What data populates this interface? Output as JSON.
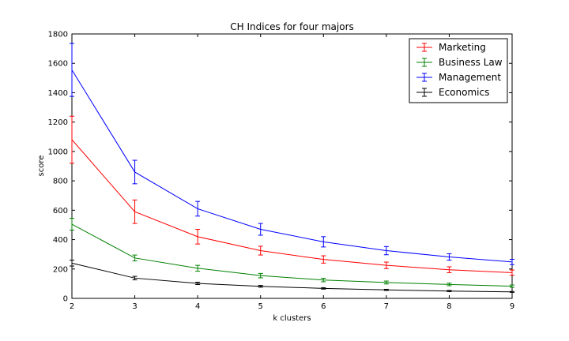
{
  "chart_data": {
    "type": "line",
    "title": "CH Indices for four majors",
    "xlabel": "k clusters",
    "ylabel": "score",
    "xlim": [
      2,
      9
    ],
    "ylim": [
      0,
      1800
    ],
    "x": [
      2,
      3,
      4,
      5,
      6,
      7,
      8,
      9
    ],
    "xticks": [
      "2",
      "3",
      "4",
      "5",
      "6",
      "7",
      "8",
      "9"
    ],
    "yticks": [
      "0",
      "200",
      "400",
      "600",
      "800",
      "1000",
      "1200",
      "1400",
      "1600",
      "1800"
    ],
    "grid": false,
    "legend_position": "top-right",
    "series": [
      {
        "name": "Marketing",
        "color": "#ff0000",
        "values": [
          1080,
          590,
          420,
          325,
          265,
          225,
          195,
          175
        ],
        "errors": [
          160,
          80,
          50,
          30,
          25,
          22,
          20,
          18
        ]
      },
      {
        "name": "Business Law",
        "color": "#008000",
        "values": [
          505,
          275,
          205,
          155,
          125,
          108,
          95,
          83
        ],
        "errors": [
          40,
          20,
          20,
          15,
          12,
          10,
          9,
          8
        ]
      },
      {
        "name": "Management",
        "color": "#0000ff",
        "values": [
          1555,
          860,
          610,
          470,
          385,
          325,
          282,
          248
        ],
        "errors": [
          180,
          80,
          50,
          40,
          35,
          28,
          22,
          18
        ]
      },
      {
        "name": "Economics",
        "color": "#000000",
        "values": [
          240,
          138,
          102,
          82,
          68,
          58,
          50,
          44
        ],
        "errors": [
          20,
          12,
          8,
          6,
          5,
          4,
          4,
          3
        ]
      }
    ]
  }
}
